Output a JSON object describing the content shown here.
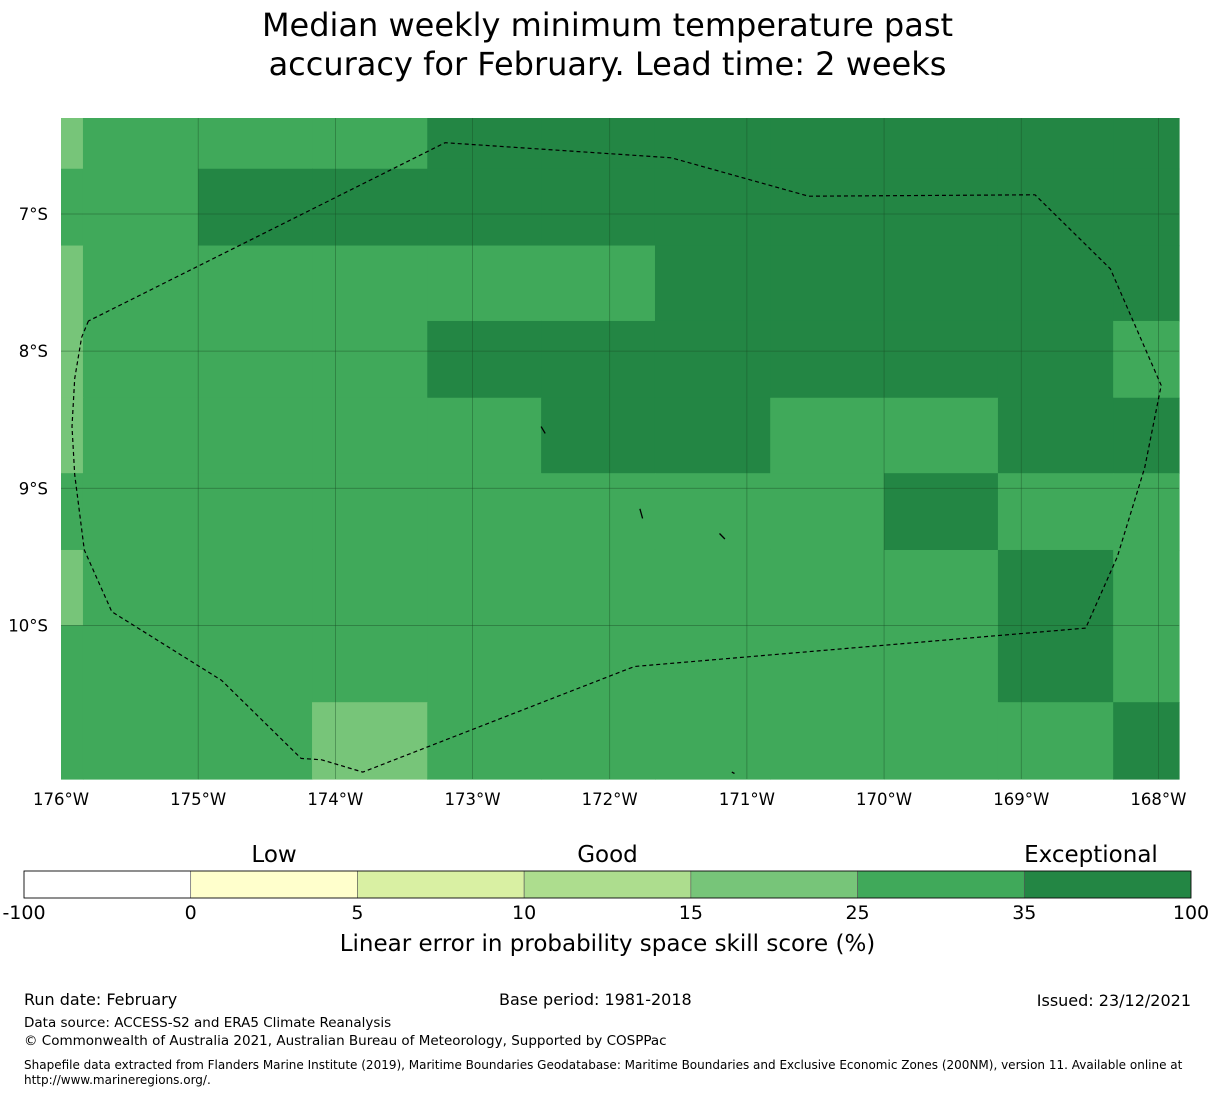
{
  "title": {
    "line1": "Median weekly minimum temperature past",
    "line2": "accuracy for February. Lead time: 2 weeks"
  },
  "map": {
    "lon_range": [
      -176,
      -167.85
    ],
    "lat_range": [
      -11.12,
      -6.3
    ],
    "x_ticks": [
      {
        "lon": -176,
        "label": "176°W"
      },
      {
        "lon": -175,
        "label": "175°W"
      },
      {
        "lon": -174,
        "label": "174°W"
      },
      {
        "lon": -173,
        "label": "173°W"
      },
      {
        "lon": -172,
        "label": "172°W"
      },
      {
        "lon": -171,
        "label": "171°W"
      },
      {
        "lon": -170,
        "label": "170°W"
      },
      {
        "lon": -169,
        "label": "169°W"
      },
      {
        "lon": -168,
        "label": "168°W"
      }
    ],
    "y_ticks": [
      {
        "lat": -7,
        "label": "7°S"
      },
      {
        "lat": -8,
        "label": "8°S"
      },
      {
        "lat": -9,
        "label": "9°S"
      },
      {
        "lat": -10,
        "label": "10°S"
      }
    ],
    "grid_lon_edges": [
      -176,
      -175.84,
      -175.0,
      -174.17,
      -173.33,
      -172.5,
      -171.67,
      -170.83,
      -170.0,
      -169.17,
      -168.33,
      -167.85
    ],
    "grid_lat_edges": [
      -6.3,
      -6.67,
      -7.23,
      -7.78,
      -8.34,
      -8.89,
      -9.45,
      -10.0,
      -10.56,
      -11.12
    ],
    "category_colors": {
      "good": "#77c579",
      "very_good": "#40a95a",
      "exceptional": "#238644"
    },
    "cells": [
      [
        "good",
        "very_good",
        "very_good",
        "very_good",
        "exceptional",
        "exceptional",
        "exceptional",
        "exceptional",
        "exceptional",
        "exceptional",
        "exceptional"
      ],
      [
        "very_good",
        "very_good",
        "exceptional",
        "exceptional",
        "exceptional",
        "exceptional",
        "exceptional",
        "exceptional",
        "exceptional",
        "exceptional",
        "exceptional"
      ],
      [
        "good",
        "very_good",
        "very_good",
        "very_good",
        "very_good",
        "very_good",
        "exceptional",
        "exceptional",
        "exceptional",
        "exceptional",
        "exceptional"
      ],
      [
        "good",
        "very_good",
        "very_good",
        "very_good",
        "exceptional",
        "exceptional",
        "exceptional",
        "exceptional",
        "exceptional",
        "exceptional",
        "very_good"
      ],
      [
        "good",
        "very_good",
        "very_good",
        "very_good",
        "very_good",
        "exceptional",
        "exceptional",
        "very_good",
        "very_good",
        "exceptional",
        "exceptional"
      ],
      [
        "very_good",
        "very_good",
        "very_good",
        "very_good",
        "very_good",
        "very_good",
        "very_good",
        "very_good",
        "exceptional",
        "very_good",
        "very_good"
      ],
      [
        "good",
        "very_good",
        "very_good",
        "very_good",
        "very_good",
        "very_good",
        "very_good",
        "very_good",
        "very_good",
        "exceptional",
        "very_good"
      ],
      [
        "very_good",
        "very_good",
        "very_good",
        "very_good",
        "very_good",
        "very_good",
        "very_good",
        "very_good",
        "very_good",
        "exceptional",
        "very_good"
      ],
      [
        "very_good",
        "very_good",
        "very_good",
        "good",
        "very_good",
        "very_good",
        "very_good",
        "very_good",
        "very_good",
        "very_good",
        "exceptional"
      ]
    ],
    "eez_boundary": [
      [
        -175.8,
        -7.78
      ],
      [
        -175.85,
        -7.9
      ],
      [
        -175.9,
        -8.2
      ],
      [
        -175.92,
        -8.55
      ],
      [
        -175.9,
        -8.9
      ],
      [
        -175.83,
        -9.45
      ],
      [
        -175.63,
        -9.9
      ],
      [
        -174.83,
        -10.4
      ],
      [
        -174.25,
        -10.97
      ],
      [
        -174.1,
        -10.98
      ],
      [
        -173.8,
        -11.07
      ],
      [
        -171.82,
        -10.3
      ],
      [
        -168.53,
        -10.02
      ],
      [
        -168.3,
        -9.5
      ],
      [
        -168.1,
        -8.85
      ],
      [
        -167.98,
        -8.25
      ],
      [
        -168.35,
        -7.4
      ],
      [
        -168.9,
        -6.86
      ],
      [
        -170.55,
        -6.87
      ],
      [
        -171.55,
        -6.59
      ],
      [
        -173.2,
        -6.48
      ],
      [
        -175.8,
        -7.78
      ]
    ],
    "islands": [
      [
        [
          -172.5,
          -8.55
        ],
        [
          -172.47,
          -8.6
        ]
      ],
      [
        [
          -171.78,
          -9.15
        ],
        [
          -171.76,
          -9.22
        ]
      ],
      [
        [
          -171.2,
          -9.33
        ],
        [
          -171.16,
          -9.37
        ]
      ],
      [
        [
          -171.11,
          -11.07
        ],
        [
          -171.09,
          -11.08
        ]
      ]
    ]
  },
  "colorbar": {
    "categories": [
      {
        "label": "Low",
        "at": 1.5
      },
      {
        "label": "Good",
        "at": 3.5
      },
      {
        "label": "Exceptional",
        "at": 6.4
      }
    ],
    "segments": [
      {
        "from": "-100",
        "to": "0",
        "color": "#ffffff"
      },
      {
        "from": "0",
        "to": "5",
        "color": "#ffffcc"
      },
      {
        "from": "5",
        "to": "10",
        "color": "#d9f0a3"
      },
      {
        "from": "10",
        "to": "15",
        "color": "#addd8e"
      },
      {
        "from": "15",
        "to": "25",
        "color": "#77c579"
      },
      {
        "from": "25",
        "to": "35",
        "color": "#40a95a"
      },
      {
        "from": "35",
        "to": "100",
        "color": "#238644"
      }
    ],
    "ticks": [
      "-100",
      "0",
      "5",
      "10",
      "15",
      "25",
      "35",
      "100"
    ],
    "label": "Linear error in probability space skill score (%)"
  },
  "footer": {
    "run_date": "Run date: February",
    "base_period": "Base period: 1981-2018",
    "issued": "Issued: 23/12/2021",
    "data_source": "Data source: ACCESS-S2 and ERA5 Climate Reanalysis",
    "copyright": "© Commonwealth of Australia 2021, Australian Bureau of Meteorology, Supported by COSPPac",
    "shapefile": "Shapefile data extracted from Flanders Marine Institute (2019), Maritime Boundaries Geodatabase: Maritime Boundaries and Exclusive Economic Zones (200NM), version 11. Available online at http://www.marineregions.org/."
  }
}
